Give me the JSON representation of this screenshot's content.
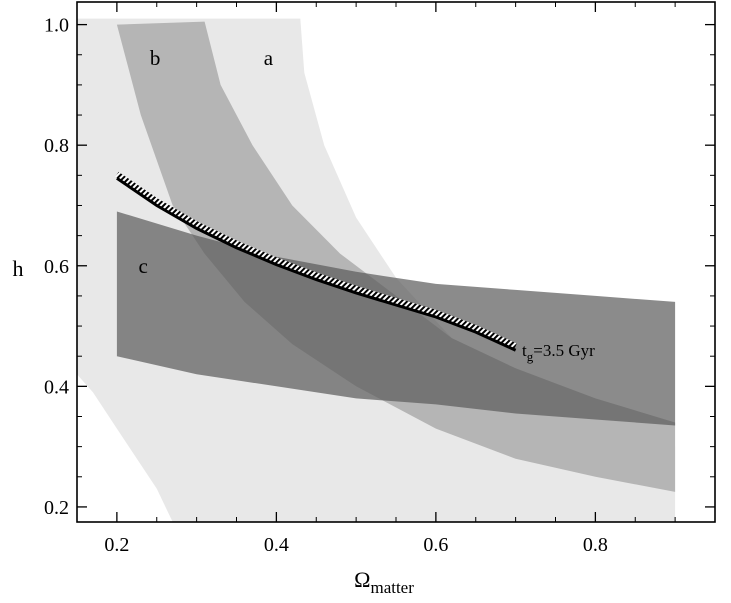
{
  "chart_data": {
    "type": "area",
    "xlabel": "Ω",
    "xlabel_sub": "matter",
    "ylabel": "h",
    "xlim": [
      0.15,
      0.95
    ],
    "ylim": [
      0.175,
      1.0375
    ],
    "x_ticks": [
      0.2,
      0.4,
      0.6,
      0.8
    ],
    "x_tick_labels": [
      "0.2",
      "0.4",
      "0.6",
      "0.8"
    ],
    "y_ticks": [
      0.2,
      0.4,
      0.6,
      0.8,
      1.0
    ],
    "y_tick_labels": [
      "0.2",
      "0.4",
      "0.6",
      "0.8",
      "1.0"
    ],
    "grid": false,
    "regions": [
      {
        "label": "a",
        "color": "#e8e8e8",
        "opacity": 1,
        "label_pos": [
          0.39,
          0.945
        ],
        "polygon": [
          [
            0.15,
            1.01
          ],
          [
            0.43,
            1.01
          ],
          [
            0.435,
            0.92
          ],
          [
            0.46,
            0.8
          ],
          [
            0.5,
            0.68
          ],
          [
            0.55,
            0.58
          ],
          [
            0.62,
            0.48
          ],
          [
            0.7,
            0.4
          ],
          [
            0.8,
            0.34
          ],
          [
            0.9,
            0.3
          ],
          [
            0.9,
            0.175
          ],
          [
            0.27,
            0.175
          ],
          [
            0.25,
            0.23
          ],
          [
            0.2,
            0.33
          ],
          [
            0.17,
            0.39
          ],
          [
            0.15,
            0.42
          ]
        ]
      },
      {
        "label": "b",
        "color": "#b5b5b5",
        "opacity": 1,
        "label_pos": [
          0.248,
          0.945
        ],
        "polygon": [
          [
            0.2,
            1.0
          ],
          [
            0.31,
            1.005
          ],
          [
            0.33,
            0.9
          ],
          [
            0.37,
            0.8
          ],
          [
            0.42,
            0.7
          ],
          [
            0.48,
            0.62
          ],
          [
            0.55,
            0.55
          ],
          [
            0.62,
            0.48
          ],
          [
            0.7,
            0.43
          ],
          [
            0.8,
            0.38
          ],
          [
            0.9,
            0.34
          ],
          [
            0.9,
            0.225
          ],
          [
            0.8,
            0.25
          ],
          [
            0.7,
            0.28
          ],
          [
            0.6,
            0.33
          ],
          [
            0.5,
            0.4
          ],
          [
            0.42,
            0.47
          ],
          [
            0.36,
            0.54
          ],
          [
            0.31,
            0.62
          ],
          [
            0.27,
            0.7
          ],
          [
            0.23,
            0.85
          ]
        ]
      },
      {
        "label": "c",
        "color": "#5a5a5a",
        "opacity": 0.7,
        "label_pos": [
          0.233,
          0.6
        ],
        "polygon": [
          [
            0.2,
            0.69
          ],
          [
            0.3,
            0.65
          ],
          [
            0.4,
            0.615
          ],
          [
            0.5,
            0.59
          ],
          [
            0.6,
            0.57
          ],
          [
            0.7,
            0.56
          ],
          [
            0.8,
            0.55
          ],
          [
            0.9,
            0.54
          ],
          [
            0.9,
            0.335
          ],
          [
            0.8,
            0.345
          ],
          [
            0.7,
            0.355
          ],
          [
            0.6,
            0.37
          ],
          [
            0.5,
            0.38
          ],
          [
            0.4,
            0.4
          ],
          [
            0.3,
            0.42
          ],
          [
            0.2,
            0.45
          ]
        ]
      }
    ],
    "series": [
      {
        "name": "t_g=3.5 Gyr",
        "color": "#000000",
        "x": [
          0.2,
          0.25,
          0.3,
          0.35,
          0.4,
          0.45,
          0.5,
          0.55,
          0.6,
          0.65,
          0.7
        ],
        "y": [
          0.745,
          0.7,
          0.662,
          0.63,
          0.602,
          0.577,
          0.555,
          0.535,
          0.515,
          0.49,
          0.46
        ]
      }
    ],
    "annotation": {
      "text": "t",
      "sub": "g",
      "rest": "=3.5 Gyr",
      "pos": [
        0.708,
        0.46
      ]
    }
  }
}
